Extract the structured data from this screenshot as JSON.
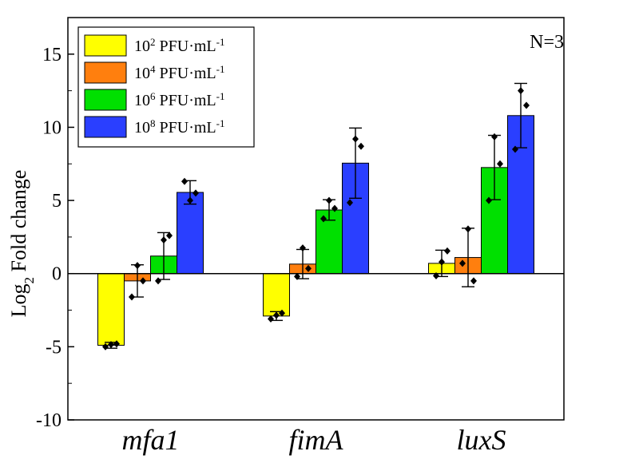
{
  "chart_data": {
    "type": "bar",
    "categories": [
      "mfa1",
      "fimA",
      "luxS"
    ],
    "ylabel": {
      "prefix": "Log",
      "sub": "2",
      "suffix": " Fold change"
    },
    "ylim": [
      -10,
      17.5
    ],
    "yticks": [
      -10,
      -5,
      0,
      5,
      10,
      15
    ],
    "ytick_labels": [
      "-10",
      "-5",
      "0",
      "5",
      "10",
      "15"
    ],
    "annotation": "N=3",
    "legend_position": "top-left",
    "series": [
      {
        "name": {
          "base": "10",
          "exp": "2",
          "unit": " PFU·mL",
          "unit_exp": "-1"
        },
        "color": "#ffff00",
        "values": [
          -4.9,
          -2.9,
          0.7
        ],
        "err": [
          0.2,
          0.3,
          0.9
        ],
        "points": [
          [
            -5.0,
            -4.85,
            -4.8
          ],
          [
            -3.1,
            -2.85,
            -2.7
          ],
          [
            -0.15,
            0.8,
            1.55
          ]
        ]
      },
      {
        "name": {
          "base": "10",
          "exp": "4",
          "unit": " PFU·mL",
          "unit_exp": "-1"
        },
        "color": "#ff7f0e",
        "values": [
          -0.5,
          0.65,
          1.1
        ],
        "err": [
          1.1,
          1.0,
          2.0
        ],
        "points": [
          [
            -1.6,
            0.55,
            -0.5
          ],
          [
            -0.2,
            1.75,
            0.35
          ],
          [
            0.7,
            3.05,
            -0.5
          ]
        ]
      },
      {
        "name": {
          "base": "10",
          "exp": "6",
          "unit": " PFU·mL",
          "unit_exp": "-1"
        },
        "color": "#00e000",
        "values": [
          1.2,
          4.35,
          7.25
        ],
        "err": [
          1.6,
          0.7,
          2.2
        ],
        "points": [
          [
            -0.5,
            2.3,
            2.6
          ],
          [
            3.75,
            5.0,
            4.45
          ],
          [
            5.0,
            9.35,
            7.5
          ]
        ]
      },
      {
        "name": {
          "base": "10",
          "exp": "8",
          "unit": " PFU·mL",
          "unit_exp": "-1"
        },
        "color": "#2a3fff",
        "values": [
          5.55,
          7.55,
          10.8
        ],
        "err": [
          0.8,
          2.4,
          2.2
        ],
        "points": [
          [
            6.3,
            5.0,
            5.5
          ],
          [
            4.85,
            9.2,
            8.7
          ],
          [
            8.5,
            12.5,
            11.5
          ]
        ]
      }
    ]
  }
}
